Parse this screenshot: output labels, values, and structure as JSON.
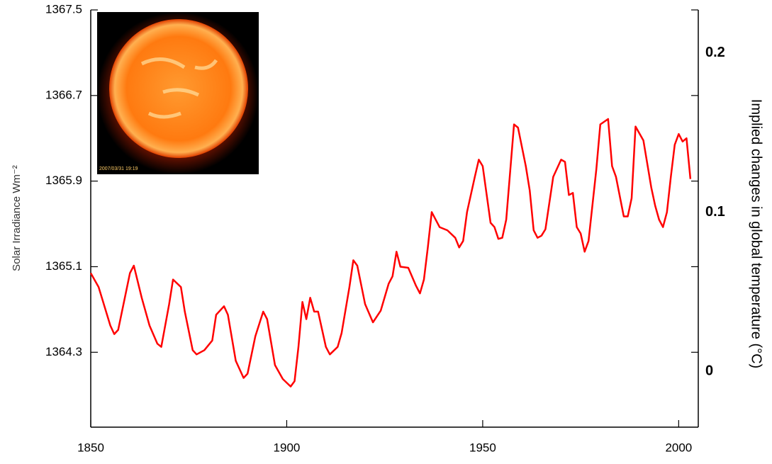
{
  "chart_data": {
    "type": "line",
    "y_label": "Solar Irradiance Wm⁻²",
    "y2_label": "Implied changes in global temperature (°C)",
    "inset_caption": "2007/03/31 19:19",
    "color": "#ff0000",
    "xlim": [
      1850,
      2005
    ],
    "xticks": [
      1850,
      1900,
      1950,
      2000
    ],
    "ylim": [
      1363.6,
      1367.5
    ],
    "yticks": [
      1364.3,
      1365.1,
      1365.9,
      1366.7,
      1367.5
    ],
    "y2lim": [
      -0.035,
      0.227
    ],
    "y2ticks": [
      0,
      0.1,
      0.2
    ],
    "x": [
      1850,
      1852,
      1855,
      1856,
      1857,
      1860,
      1861,
      1863,
      1865,
      1867,
      1868,
      1870,
      1871,
      1873,
      1874,
      1876,
      1877,
      1879,
      1881,
      1882,
      1884,
      1885,
      1887,
      1889,
      1890,
      1892,
      1894,
      1895,
      1897,
      1899,
      1901,
      1902,
      1903,
      1904,
      1905,
      1906,
      1907,
      1908,
      1910,
      1911,
      1913,
      1914,
      1916,
      1917,
      1918,
      1920,
      1922,
      1924,
      1926,
      1927,
      1928,
      1929,
      1931,
      1933,
      1934,
      1935,
      1936,
      1937,
      1939,
      1941,
      1943,
      1944,
      1945,
      1946,
      1948,
      1949,
      1950,
      1952,
      1953,
      1954,
      1955,
      1956,
      1958,
      1959,
      1961,
      1962,
      1963,
      1964,
      1965,
      1966,
      1968,
      1970,
      1971,
      1972,
      1973,
      1974,
      1975,
      1976,
      1977,
      1979,
      1980,
      1982,
      1983,
      1984,
      1986,
      1987,
      1988,
      1989,
      1991,
      1993,
      1994,
      1995,
      1996,
      1997,
      1998,
      1999,
      2000,
      2001,
      2002,
      2003
    ],
    "values": [
      1365.04,
      1364.91,
      1364.55,
      1364.47,
      1364.51,
      1365.04,
      1365.11,
      1364.81,
      1364.55,
      1364.38,
      1364.35,
      1364.75,
      1364.98,
      1364.91,
      1364.68,
      1364.32,
      1364.28,
      1364.32,
      1364.41,
      1364.65,
      1364.73,
      1364.65,
      1364.22,
      1364.06,
      1364.1,
      1364.45,
      1364.68,
      1364.61,
      1364.18,
      1364.05,
      1363.98,
      1364.03,
      1364.35,
      1364.77,
      1364.61,
      1364.81,
      1364.68,
      1364.68,
      1364.35,
      1364.28,
      1364.35,
      1364.48,
      1364.91,
      1365.16,
      1365.11,
      1364.75,
      1364.58,
      1364.69,
      1364.94,
      1365.01,
      1365.24,
      1365.1,
      1365.09,
      1364.92,
      1364.85,
      1364.98,
      1365.28,
      1365.61,
      1365.47,
      1365.44,
      1365.37,
      1365.28,
      1365.34,
      1365.61,
      1365.94,
      1366.1,
      1366.04,
      1365.51,
      1365.47,
      1365.36,
      1365.37,
      1365.54,
      1366.43,
      1366.4,
      1366.04,
      1365.81,
      1365.44,
      1365.37,
      1365.39,
      1365.45,
      1365.94,
      1366.1,
      1366.08,
      1365.77,
      1365.79,
      1365.47,
      1365.41,
      1365.24,
      1365.34,
      1366.01,
      1366.43,
      1366.48,
      1366.04,
      1365.94,
      1365.57,
      1365.57,
      1365.74,
      1366.41,
      1366.28,
      1365.84,
      1365.67,
      1365.54,
      1365.47,
      1365.61,
      1365.94,
      1366.24,
      1366.34,
      1366.27,
      1366.3,
      1365.92
    ]
  }
}
